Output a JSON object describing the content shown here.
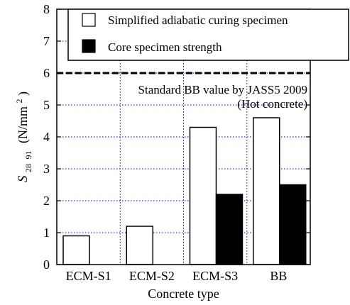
{
  "chart_data": {
    "type": "bar",
    "categories": [
      "ECM-S1",
      "ECM-S2",
      "ECM-S3",
      "BB"
    ],
    "series": [
      {
        "name": "Simplified adiabatic curing specimen",
        "values": [
          0.9,
          1.2,
          4.3,
          4.6
        ],
        "fill": "#ffffff"
      },
      {
        "name": "Core specimen strength",
        "values": [
          null,
          null,
          2.2,
          2.5
        ],
        "fill": "#000000"
      }
    ],
    "xlabel": "Concrete type",
    "ylabel": {
      "symbol": "S",
      "sub1": "28",
      "sub2": "91",
      "unit_prefix": "(N/mm",
      "unit_sup": "2",
      "unit_suffix": ")"
    },
    "ylim": [
      0,
      8
    ],
    "yticks": [
      0,
      1,
      2,
      3,
      4,
      5,
      6,
      7,
      8
    ],
    "grid": {
      "x": true,
      "y": true,
      "style": "dotted",
      "color": "#0000cc"
    },
    "reference_line": {
      "value": 6,
      "label_line1": "Standard BB value by JASS5 2009",
      "label_line2": "(Hot concrete)"
    },
    "legend_placement": "top-right"
  }
}
